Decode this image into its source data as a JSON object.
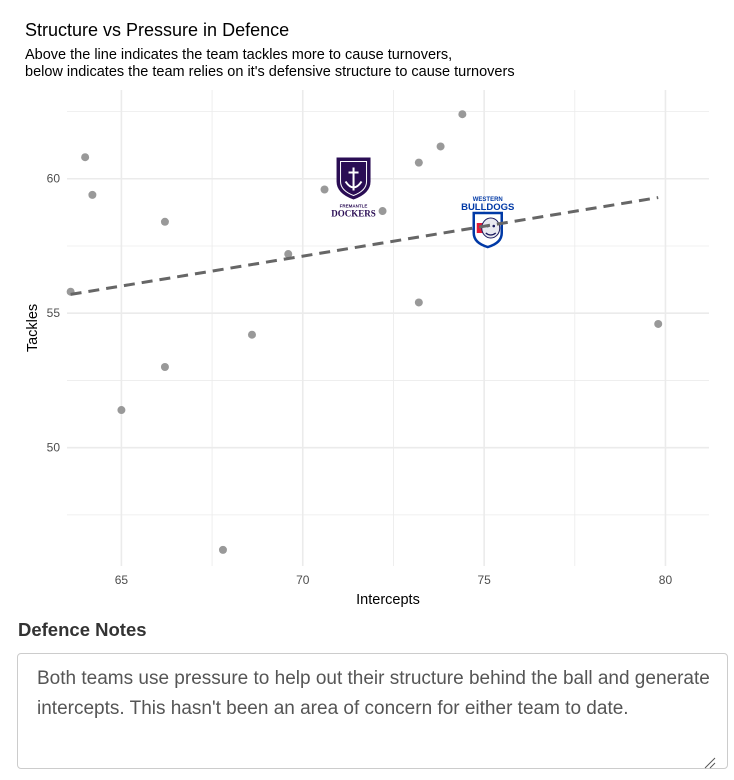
{
  "chart_data": {
    "type": "scatter",
    "title": "Structure vs Pressure in Defence",
    "subtitle_lines": [
      "Above the line indicates the team tackles more to cause turnovers,",
      "below indicates the team relies on it's defensive structure to cause turnovers"
    ],
    "xlabel": "Intercepts",
    "ylabel": "Tackles",
    "xlim": [
      63.5,
      81.2
    ],
    "ylim": [
      45.6,
      63.3
    ],
    "x_ticks": [
      65,
      70,
      75,
      80
    ],
    "y_ticks": [
      50,
      55,
      60
    ],
    "x_tick_labels": [
      "65",
      "70",
      "75",
      "80"
    ],
    "y_tick_labels": [
      "50",
      "55",
      "60"
    ],
    "grid": true,
    "point_color": "#999999",
    "points": [
      {
        "x": 64.0,
        "y": 60.8
      },
      {
        "x": 64.2,
        "y": 59.4
      },
      {
        "x": 63.6,
        "y": 55.8
      },
      {
        "x": 65.0,
        "y": 51.4
      },
      {
        "x": 66.2,
        "y": 58.4
      },
      {
        "x": 66.2,
        "y": 53.0
      },
      {
        "x": 67.8,
        "y": 46.2
      },
      {
        "x": 68.6,
        "y": 54.2
      },
      {
        "x": 69.6,
        "y": 57.2
      },
      {
        "x": 70.6,
        "y": 59.6
      },
      {
        "x": 72.2,
        "y": 58.8
      },
      {
        "x": 73.2,
        "y": 60.6
      },
      {
        "x": 73.2,
        "y": 55.4
      },
      {
        "x": 73.8,
        "y": 61.2
      },
      {
        "x": 74.4,
        "y": 62.4
      },
      {
        "x": 79.8,
        "y": 54.6
      }
    ],
    "trend_line": {
      "x": [
        63.6,
        79.8
      ],
      "y": [
        55.7,
        59.3
      ],
      "style": "dashed",
      "color": "#666666"
    },
    "logos": [
      {
        "team": "Fremantle Dockers",
        "x": 71.4,
        "y": 59.6,
        "text_top": "FREMANTLE",
        "text_main": "DOCKERS"
      },
      {
        "team": "Western Bulldogs",
        "x": 75.1,
        "y": 58.8,
        "text_top": "WESTERN",
        "text_main": "BULLDOGS"
      }
    ]
  },
  "notes": {
    "heading": "Defence Notes",
    "text": "Both teams use pressure to help out their structure behind the ball and generate intercepts. This hasn't been an area of concern for either team to date."
  },
  "colors": {
    "grid": "#ebebeb",
    "trend": "#666666",
    "dockers_purple": "#2a0d54",
    "bulldogs_blue": "#0039a6",
    "bulldogs_red": "#e21937"
  }
}
